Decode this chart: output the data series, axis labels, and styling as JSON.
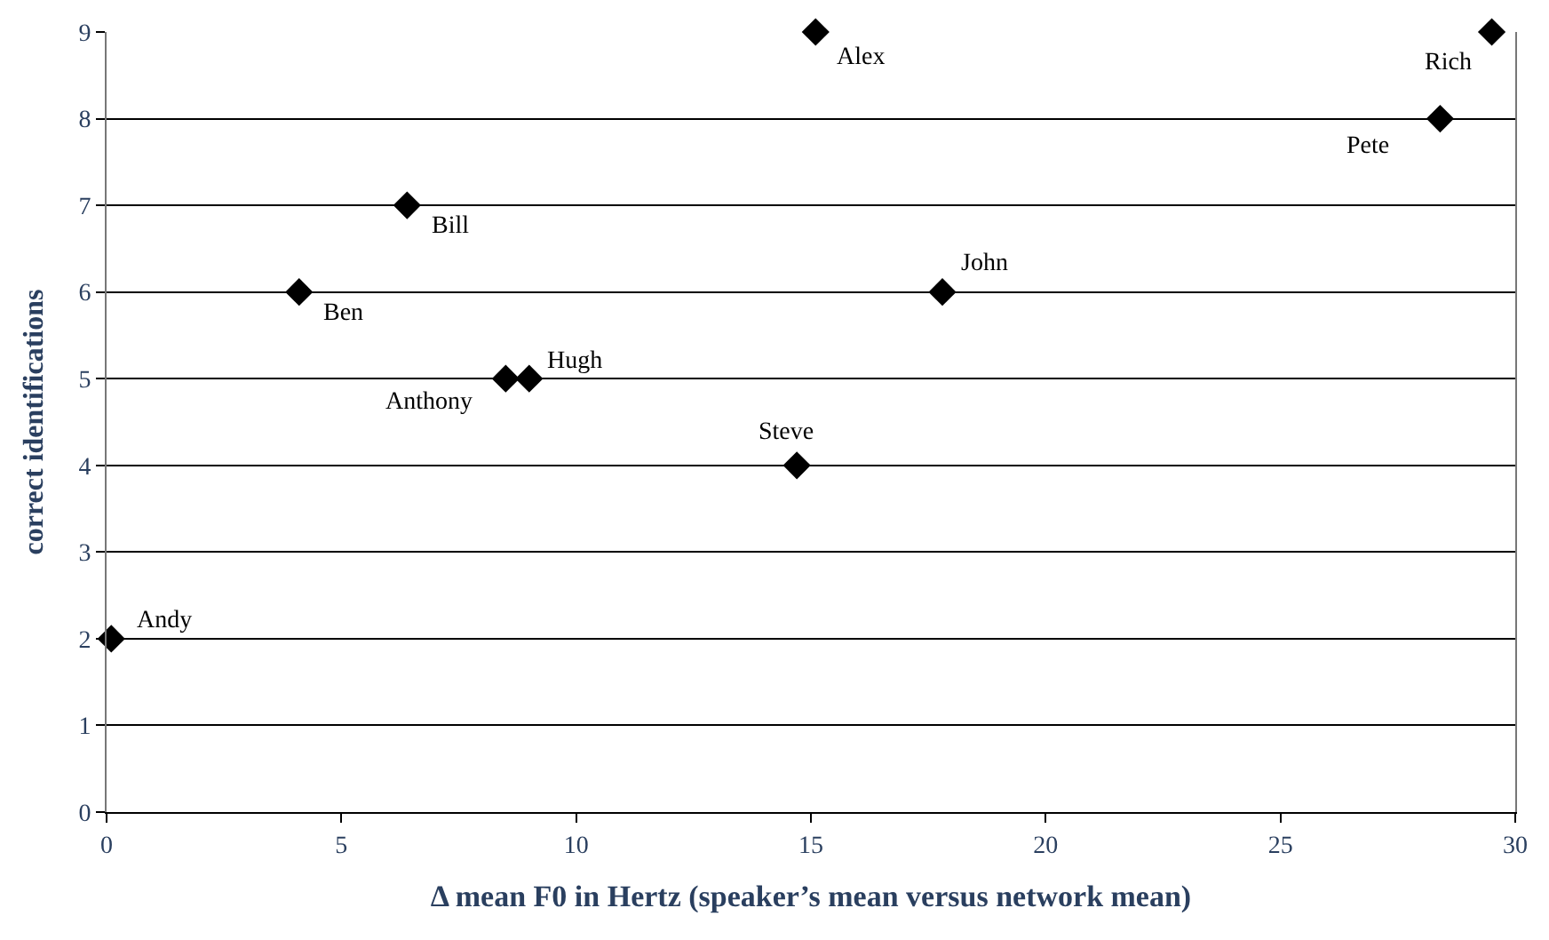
{
  "chart_data": {
    "type": "scatter",
    "xlabel": "Δ mean F0 in Hertz (speaker’s mean versus network mean)",
    "ylabel": "correct identifications",
    "x": [
      0.1,
      4.1,
      6.4,
      8.5,
      9.0,
      14.7,
      15.1,
      17.8,
      28.4,
      29.5
    ],
    "values": [
      2,
      6,
      7,
      5,
      5,
      4,
      9,
      6,
      8,
      9
    ],
    "color": "#000000",
    "marker": "diamond",
    "xlim": [
      0,
      30
    ],
    "xticks": [
      0,
      5,
      10,
      15,
      20,
      25,
      30
    ],
    "ylim": [
      0,
      9
    ],
    "yticks": [
      0,
      1,
      2,
      3,
      4,
      5,
      6,
      7,
      8,
      9
    ],
    "grid": "y",
    "legend": false,
    "annotations": [
      {
        "text": "Andy",
        "x": 0.1,
        "y": 2
      },
      {
        "text": "Ben",
        "x": 4.1,
        "y": 6
      },
      {
        "text": "Bill",
        "x": 6.4,
        "y": 7
      },
      {
        "text": "Anthony",
        "x": 8.5,
        "y": 5
      },
      {
        "text": "Hugh",
        "x": 9.0,
        "y": 5
      },
      {
        "text": "Steve",
        "x": 14.7,
        "y": 4
      },
      {
        "text": "Alex",
        "x": 15.1,
        "y": 9
      },
      {
        "text": "John",
        "x": 17.8,
        "y": 6
      },
      {
        "text": "Pete",
        "x": 28.4,
        "y": 8
      },
      {
        "text": "Rich",
        "x": 29.5,
        "y": 9
      }
    ]
  }
}
